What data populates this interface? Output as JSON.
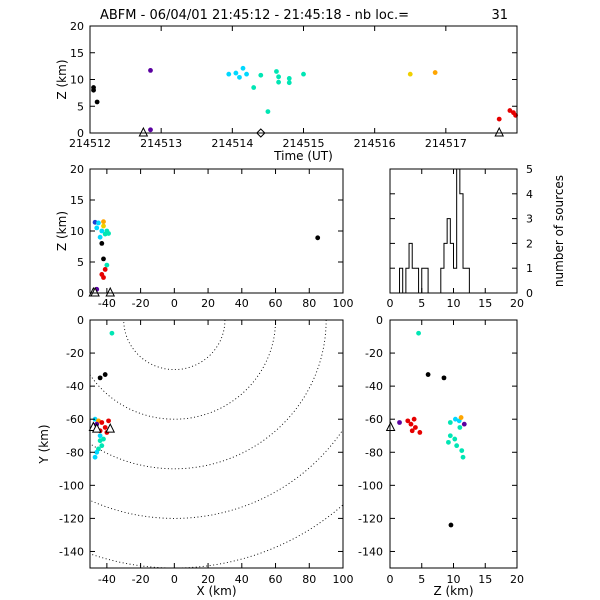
{
  "title": "ABFM - 06/04/01 21:45:12 - 21:45:18 - nb loc.=",
  "nb_loc": "31",
  "colors": {
    "black": "#000000",
    "purple": "#5a00a0",
    "blue": "#1f3fd0",
    "cyan": "#00d8ff",
    "teal": "#00e6b4",
    "orange": "#ffa500",
    "yellow": "#f0d000",
    "red": "#e60000"
  },
  "chart_data": [
    {
      "id": "time-height",
      "type": "scatter",
      "xlabel": "Time (UT)",
      "ylabel": "Z (km)",
      "xlim": [
        214512.0,
        214518.0
      ],
      "ylim": [
        0,
        20
      ],
      "xticks": [
        214512,
        214513,
        214514,
        214515,
        214516,
        214517
      ],
      "xtick_labels": [
        "214512",
        "214513",
        "214514",
        "214515",
        "214516",
        "214517"
      ],
      "yticks": [
        0,
        5,
        10,
        15,
        20
      ],
      "ytick_labels": [
        "0",
        "5",
        "10",
        "15",
        "20"
      ],
      "points": [
        {
          "x": 214512.05,
          "y": 8.5,
          "c": "black"
        },
        {
          "x": 214512.05,
          "y": 8.0,
          "c": "black"
        },
        {
          "x": 214512.1,
          "y": 5.8,
          "c": "black"
        },
        {
          "x": 214512.85,
          "y": 11.7,
          "c": "purple"
        },
        {
          "x": 214512.85,
          "y": 0.6,
          "c": "purple"
        },
        {
          "x": 214513.95,
          "y": 11.0,
          "c": "cyan"
        },
        {
          "x": 214514.05,
          "y": 11.2,
          "c": "cyan"
        },
        {
          "x": 214514.1,
          "y": 10.4,
          "c": "cyan"
        },
        {
          "x": 214514.15,
          "y": 12.1,
          "c": "cyan"
        },
        {
          "x": 214514.2,
          "y": 11.0,
          "c": "cyan"
        },
        {
          "x": 214514.3,
          "y": 8.5,
          "c": "teal"
        },
        {
          "x": 214514.4,
          "y": 10.8,
          "c": "teal"
        },
        {
          "x": 214514.5,
          "y": 4.0,
          "c": "teal"
        },
        {
          "x": 214514.62,
          "y": 11.5,
          "c": "teal"
        },
        {
          "x": 214514.65,
          "y": 10.5,
          "c": "teal"
        },
        {
          "x": 214514.65,
          "y": 9.5,
          "c": "teal"
        },
        {
          "x": 214514.8,
          "y": 10.2,
          "c": "teal"
        },
        {
          "x": 214514.8,
          "y": 9.4,
          "c": "teal"
        },
        {
          "x": 214515.0,
          "y": 11.0,
          "c": "teal"
        },
        {
          "x": 214516.5,
          "y": 11.0,
          "c": "yellow"
        },
        {
          "x": 214516.85,
          "y": 11.3,
          "c": "orange"
        },
        {
          "x": 214517.75,
          "y": 2.6,
          "c": "red"
        },
        {
          "x": 214517.9,
          "y": 4.2,
          "c": "red"
        },
        {
          "x": 214517.95,
          "y": 3.8,
          "c": "red"
        },
        {
          "x": 214517.98,
          "y": 3.3,
          "c": "red"
        }
      ],
      "markers": [
        {
          "x": 214512.75,
          "y": 0,
          "shape": "triangle"
        },
        {
          "x": 214514.4,
          "y": 0,
          "shape": "diamond"
        },
        {
          "x": 214517.75,
          "y": 0,
          "shape": "triangle"
        }
      ]
    },
    {
      "id": "x-height",
      "type": "scatter",
      "xlabel": "",
      "ylabel": "Z (km)",
      "xlim": [
        -50,
        100
      ],
      "ylim": [
        0,
        20
      ],
      "xticks": [
        -40,
        -20,
        0,
        20,
        40,
        60,
        80,
        100
      ],
      "xtick_labels": [
        "-40",
        "-20",
        "0",
        "20",
        "40",
        "60",
        "80",
        "100"
      ],
      "yticks": [
        0,
        5,
        10,
        15,
        20
      ],
      "ytick_labels": [
        "0",
        "5",
        "10",
        "15",
        "20"
      ],
      "points": [
        {
          "x": -47,
          "y": 11.4,
          "c": "blue"
        },
        {
          "x": -46,
          "y": 10.5,
          "c": "cyan"
        },
        {
          "x": -45,
          "y": 11.3,
          "c": "cyan"
        },
        {
          "x": -44,
          "y": 9.0,
          "c": "cyan"
        },
        {
          "x": -43,
          "y": 10.0,
          "c": "cyan"
        },
        {
          "x": -42,
          "y": 11.5,
          "c": "orange"
        },
        {
          "x": -42,
          "y": 10.8,
          "c": "yellow"
        },
        {
          "x": -41,
          "y": 9.5,
          "c": "teal"
        },
        {
          "x": -40,
          "y": 10.0,
          "c": "teal"
        },
        {
          "x": -39,
          "y": 9.6,
          "c": "teal"
        },
        {
          "x": -43,
          "y": 8.0,
          "c": "black"
        },
        {
          "x": -42,
          "y": 5.5,
          "c": "black"
        },
        {
          "x": -40,
          "y": 4.5,
          "c": "teal"
        },
        {
          "x": -41,
          "y": 3.8,
          "c": "red"
        },
        {
          "x": -43,
          "y": 3.0,
          "c": "red"
        },
        {
          "x": -42,
          "y": 2.5,
          "c": "red"
        },
        {
          "x": -46,
          "y": 0.6,
          "c": "purple"
        },
        {
          "x": 85,
          "y": 8.9,
          "c": "black"
        }
      ],
      "markers": [
        {
          "x": -48,
          "y": 0,
          "shape": "triangle"
        },
        {
          "x": -47,
          "y": 0,
          "shape": "triangle"
        },
        {
          "x": -38,
          "y": 0,
          "shape": "triangle"
        }
      ]
    },
    {
      "id": "height-histogram",
      "type": "bar",
      "xlabel": "",
      "ylabel": "number of sources",
      "xlim": [
        0,
        20
      ],
      "ylim": [
        0,
        5
      ],
      "xticks": [
        0,
        5,
        10,
        15,
        20
      ],
      "xtick_labels": [
        "0",
        "5",
        "10",
        "15",
        "20"
      ],
      "yticks": [
        0,
        1,
        2,
        3,
        4,
        5
      ],
      "ytick_labels": [
        "0",
        "1",
        "2",
        "3",
        "4",
        "5"
      ],
      "bin_width": 0.5,
      "bins": [
        {
          "x": 1.0,
          "v": 0
        },
        {
          "x": 1.5,
          "v": 1
        },
        {
          "x": 2.0,
          "v": 0
        },
        {
          "x": 2.5,
          "v": 1
        },
        {
          "x": 3.0,
          "v": 2
        },
        {
          "x": 3.5,
          "v": 1
        },
        {
          "x": 4.0,
          "v": 1
        },
        {
          "x": 4.5,
          "v": 0
        },
        {
          "x": 5.0,
          "v": 1
        },
        {
          "x": 5.5,
          "v": 1
        },
        {
          "x": 6.0,
          "v": 0
        },
        {
          "x": 6.5,
          "v": 0
        },
        {
          "x": 7.0,
          "v": 0
        },
        {
          "x": 7.5,
          "v": 0
        },
        {
          "x": 8.0,
          "v": 1
        },
        {
          "x": 8.5,
          "v": 2
        },
        {
          "x": 9.0,
          "v": 3
        },
        {
          "x": 9.5,
          "v": 2
        },
        {
          "x": 10.0,
          "v": 1
        },
        {
          "x": 10.5,
          "v": 5
        },
        {
          "x": 11.0,
          "v": 4
        },
        {
          "x": 11.5,
          "v": 1
        },
        {
          "x": 12.0,
          "v": 1
        },
        {
          "x": 12.5,
          "v": 0
        }
      ]
    },
    {
      "id": "plan-view",
      "type": "scatter",
      "xlabel": "X (km)",
      "ylabel": "Y (km)",
      "xlim": [
        -50,
        100
      ],
      "ylim": [
        -150,
        0
      ],
      "xticks": [
        -40,
        -20,
        0,
        20,
        40,
        60,
        80,
        100
      ],
      "xtick_labels": [
        "-40",
        "-20",
        "0",
        "20",
        "40",
        "60",
        "80",
        "100"
      ],
      "yticks": [
        -140,
        -120,
        -100,
        -80,
        -60,
        -40,
        -20,
        0
      ],
      "ytick_labels": [
        "-140",
        "-120",
        "-100",
        "-80",
        "-60",
        "-40",
        "-20",
        "0"
      ],
      "range_rings": [
        {
          "cx": 0,
          "cy": 0,
          "r": 30
        },
        {
          "cx": 0,
          "cy": 0,
          "r": 60
        },
        {
          "cx": 0,
          "cy": 0,
          "r": 90
        },
        {
          "cx": 0,
          "cy": 0,
          "r": 120
        },
        {
          "cx": 0,
          "cy": 0,
          "r": 150
        }
      ],
      "points": [
        {
          "x": -37,
          "y": -8,
          "c": "teal"
        },
        {
          "x": -41,
          "y": -33,
          "c": "black"
        },
        {
          "x": -44,
          "y": -35,
          "c": "black"
        },
        {
          "x": -47,
          "y": -60,
          "c": "cyan"
        },
        {
          "x": -45,
          "y": -61,
          "c": "orange"
        },
        {
          "x": -46,
          "y": -63,
          "c": "purple"
        },
        {
          "x": -43,
          "y": -62,
          "c": "red"
        },
        {
          "x": -39,
          "y": -61,
          "c": "red"
        },
        {
          "x": -41,
          "y": -65,
          "c": "red"
        },
        {
          "x": -44,
          "y": -67,
          "c": "red"
        },
        {
          "x": -40,
          "y": -68,
          "c": "red"
        },
        {
          "x": -47,
          "y": -66,
          "c": "blue"
        },
        {
          "x": -44,
          "y": -70,
          "c": "cyan"
        },
        {
          "x": -42,
          "y": -72,
          "c": "teal"
        },
        {
          "x": -44,
          "y": -73,
          "c": "teal"
        },
        {
          "x": -43,
          "y": -76,
          "c": "teal"
        },
        {
          "x": -45,
          "y": -78,
          "c": "teal"
        },
        {
          "x": -46,
          "y": -80,
          "c": "cyan"
        },
        {
          "x": -47,
          "y": -83,
          "c": "cyan"
        }
      ],
      "markers": [
        {
          "x": -48,
          "y": -65,
          "shape": "triangle"
        },
        {
          "x": -46,
          "y": -66,
          "shape": "triangle"
        },
        {
          "x": -38,
          "y": -66,
          "shape": "triangle"
        }
      ]
    },
    {
      "id": "height-y",
      "type": "scatter",
      "xlabel": "Z (km)",
      "ylabel": "",
      "xlim": [
        0,
        20
      ],
      "ylim": [
        -150,
        0
      ],
      "xticks": [
        0,
        5,
        10,
        15,
        20
      ],
      "xtick_labels": [
        "0",
        "5",
        "10",
        "15",
        "20"
      ],
      "yticks": [
        -140,
        -120,
        -100,
        -80,
        -60,
        -40,
        -20,
        0
      ],
      "ytick_labels": [
        "-140",
        "-120",
        "-100",
        "-80",
        "-60",
        "-40",
        "-20",
        "0"
      ],
      "points": [
        {
          "x": 4.5,
          "y": -8,
          "c": "teal"
        },
        {
          "x": 6.0,
          "y": -33,
          "c": "black"
        },
        {
          "x": 8.5,
          "y": -35,
          "c": "black"
        },
        {
          "x": 1.5,
          "y": -62,
          "c": "purple"
        },
        {
          "x": 2.8,
          "y": -61,
          "c": "red"
        },
        {
          "x": 3.3,
          "y": -63,
          "c": "red"
        },
        {
          "x": 3.8,
          "y": -60,
          "c": "red"
        },
        {
          "x": 4.0,
          "y": -65,
          "c": "red"
        },
        {
          "x": 3.5,
          "y": -67,
          "c": "red"
        },
        {
          "x": 4.7,
          "y": -68,
          "c": "red"
        },
        {
          "x": 10.3,
          "y": -60,
          "c": "cyan"
        },
        {
          "x": 10.9,
          "y": -61,
          "c": "cyan"
        },
        {
          "x": 11.2,
          "y": -59,
          "c": "orange"
        },
        {
          "x": 11.7,
          "y": -63,
          "c": "purple"
        },
        {
          "x": 9.5,
          "y": -62,
          "c": "teal"
        },
        {
          "x": 11.0,
          "y": -65,
          "c": "teal"
        },
        {
          "x": 9.5,
          "y": -70,
          "c": "teal"
        },
        {
          "x": 10.2,
          "y": -72,
          "c": "teal"
        },
        {
          "x": 9.2,
          "y": -74,
          "c": "teal"
        },
        {
          "x": 10.5,
          "y": -76,
          "c": "teal"
        },
        {
          "x": 11.3,
          "y": -79,
          "c": "teal"
        },
        {
          "x": 11.5,
          "y": -83,
          "c": "teal"
        },
        {
          "x": 9.6,
          "y": -124,
          "c": "black"
        }
      ],
      "markers": [
        {
          "x": 0.1,
          "y": -65,
          "shape": "triangle"
        }
      ]
    }
  ]
}
